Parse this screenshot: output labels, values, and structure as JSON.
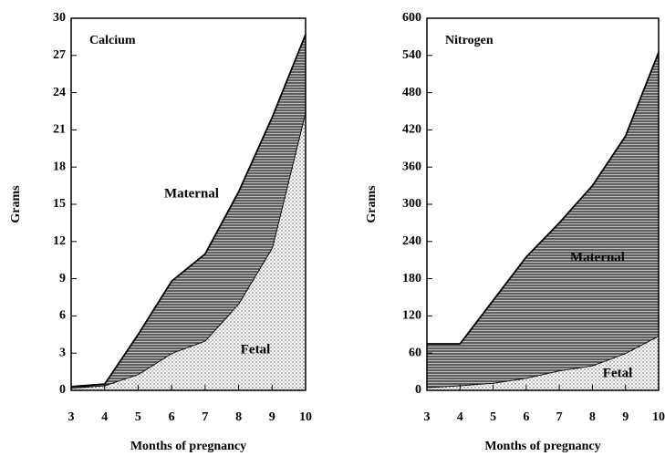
{
  "chart_data": [
    {
      "type": "area",
      "title": "Calcium",
      "ylabel": "Grams",
      "xlabel": "Months of pregnancy",
      "x": [
        3,
        4,
        5,
        6,
        7,
        8,
        9,
        10
      ],
      "xlim": [
        3,
        10
      ],
      "xticks": [
        3,
        4,
        5,
        6,
        7,
        8,
        9,
        10
      ],
      "ylim": [
        0,
        30
      ],
      "yticks": [
        0,
        3,
        6,
        9,
        12,
        15,
        18,
        21,
        24,
        27,
        30
      ],
      "stacked": true,
      "series": [
        {
          "name": "Fetal",
          "color": "#000000",
          "pattern": "dots",
          "values": [
            0.2,
            0.4,
            1.3,
            3,
            4,
            7,
            11.5,
            22.5
          ]
        },
        {
          "name": "Maternal",
          "color": "#000000",
          "pattern": "lines",
          "values": [
            0.1,
            0.1,
            3.2,
            5.8,
            7,
            9,
            10.5,
            6.2
          ]
        }
      ]
    },
    {
      "type": "area",
      "title": "Nitrogen",
      "ylabel": "Grams",
      "xlabel": "Months of pregnancy",
      "x": [
        3,
        4,
        5,
        6,
        7,
        8,
        9,
        10
      ],
      "xlim": [
        3,
        10
      ],
      "xticks": [
        3,
        4,
        5,
        6,
        7,
        8,
        9,
        10
      ],
      "ylim": [
        0,
        600
      ],
      "yticks": [
        0,
        60,
        120,
        180,
        240,
        300,
        360,
        420,
        480,
        540,
        600
      ],
      "stacked": true,
      "series": [
        {
          "name": "Fetal",
          "color": "#000000",
          "pattern": "dots",
          "values": [
            5,
            8,
            12,
            20,
            32,
            40,
            60,
            88
          ]
        },
        {
          "name": "Maternal",
          "color": "#000000",
          "pattern": "lines",
          "values": [
            70,
            67,
            133,
            195,
            238,
            290,
            350,
            457
          ]
        }
      ]
    }
  ]
}
